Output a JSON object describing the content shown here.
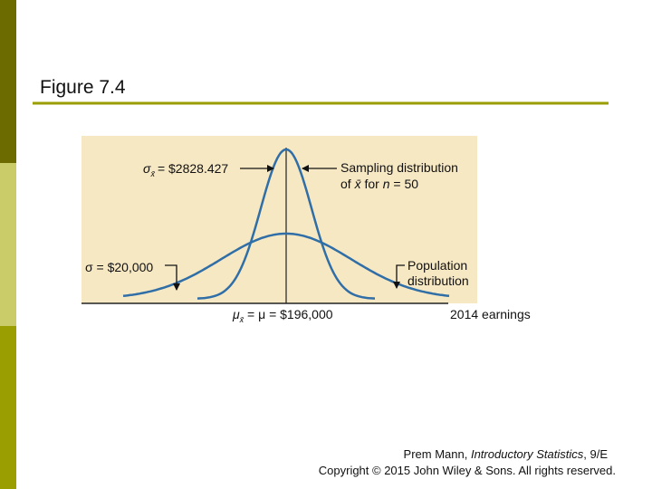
{
  "title": "Figure 7.4",
  "figure": {
    "sampling_sd": {
      "symbol": "σ",
      "subscript": "x̄",
      "text": "= $2828.427"
    },
    "sampling_label": {
      "line1": "Sampling distribution",
      "line2_a": "of ",
      "line2_xbar": "x̄",
      "line2_b": " for ",
      "line2_n": "n",
      "line2_c": " = 50"
    },
    "population_sd": "σ = $20,000",
    "population_label": {
      "line1": "Population",
      "line2": "distribution"
    },
    "mean": {
      "symbol": "μ",
      "subscript": "x̄",
      "text": " = μ = $196,000"
    },
    "axis_label": "2014 earnings"
  },
  "footer": {
    "author": "Prem Mann, ",
    "book": "Introductory Statistics",
    "edition": ", 9/E",
    "copyright": "Copyright © 2015 John Wiley & Sons. All rights reserved."
  }
}
